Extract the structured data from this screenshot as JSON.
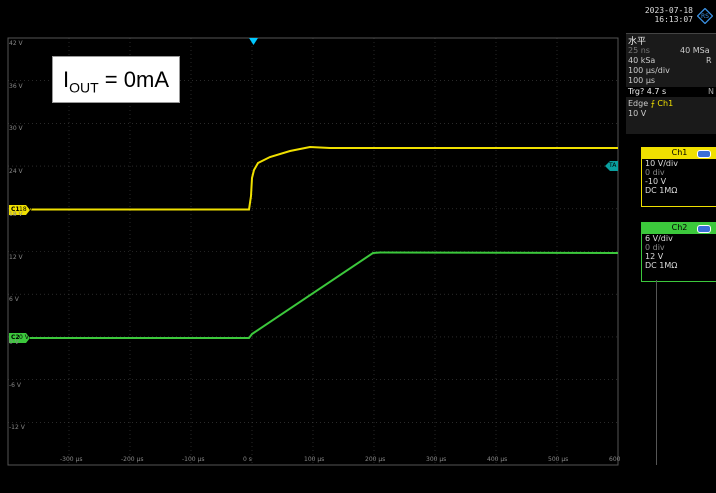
{
  "timestamp": {
    "date": "2023-07-18",
    "time": "16:13:07"
  },
  "annotation": {
    "main": "I",
    "sub": "OUT",
    "rest": " = 0mA"
  },
  "y_axis_labels": [
    "42 V",
    "36 V",
    "30 V",
    "24 V",
    "18 V",
    "12 V",
    "6 V",
    "0 V",
    "-6 V",
    "-12 V",
    "-18 V"
  ],
  "x_axis_labels": [
    "-300 µs",
    "-200 µs",
    "-100 µs",
    "0 s",
    "100 µs",
    "200 µs",
    "300 µs",
    "400 µs",
    "500 µs",
    "600 µs"
  ],
  "markers": {
    "ch1": "C1",
    "ch2": "C2",
    "ch1_y_label": "18 V",
    "ch2_y_label": "0 V",
    "trig": "TA"
  },
  "horizontal": {
    "title": "水平",
    "resolution": "25 ns",
    "sample_rate": "40 MSa",
    "record": "40 kSa",
    "record_suffix": "R",
    "time_div": "100 µs/div",
    "position": "100 µs",
    "trigger": "Trg? 4.7 s",
    "trigger_suffix": "N",
    "edge": "Edge",
    "edge_src": "Ch1",
    "level": "10 V"
  },
  "ch1": {
    "label": "Ch1",
    "vdiv": "10 V/div",
    "offset_div": "0 div",
    "offset": "-10 V",
    "coupling": "DC 1MΩ",
    "color": "#f0e000"
  },
  "ch2": {
    "label": "Ch2",
    "vdiv": "6 V/div",
    "offset_div": "0 div",
    "offset": "12 V",
    "coupling": "DC 1MΩ",
    "color": "#3cc83c"
  }
}
